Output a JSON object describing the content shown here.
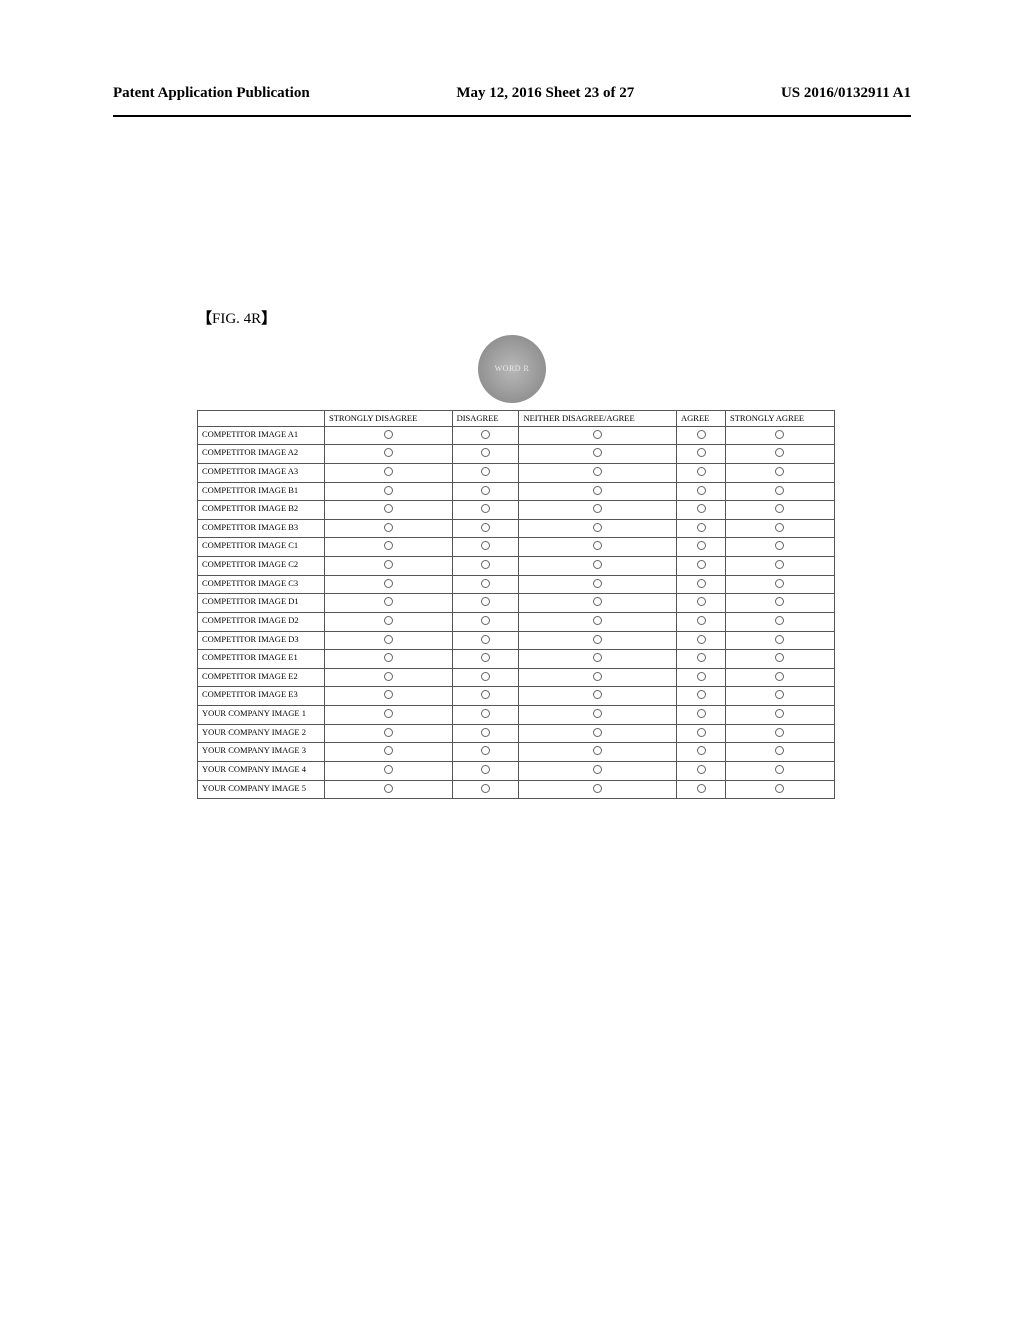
{
  "header": {
    "left": "Patent Application Publication",
    "center": "May 12, 2016  Sheet 23 of 27",
    "right": "US 2016/0132911 A1"
  },
  "figure_label": "FIG. 4R",
  "circle_word": "WORD\nR",
  "table": {
    "columns": [
      "STRONGLY DISAGREE",
      "DISAGREE",
      "NEITHER DISAGREE/AGREE",
      "AGREE",
      "STRONGLY AGREE"
    ],
    "rows": [
      "COMPETITOR IMAGE A1",
      "COMPETITOR IMAGE A2",
      "COMPETITOR IMAGE A3",
      "COMPETITOR IMAGE B1",
      "COMPETITOR IMAGE B2",
      "COMPETITOR IMAGE B3",
      "COMPETITOR IMAGE C1",
      "COMPETITOR IMAGE C2",
      "COMPETITOR IMAGE C3",
      "COMPETITOR IMAGE D1",
      "COMPETITOR IMAGE D2",
      "COMPETITOR IMAGE D3",
      "COMPETITOR IMAGE E1",
      "COMPETITOR IMAGE E2",
      "COMPETITOR IMAGE E3",
      "YOUR  COMPANY IMAGE 1",
      "YOUR  COMPANY IMAGE 2",
      "YOUR  COMPANY IMAGE 3",
      "YOUR  COMPANY IMAGE 4",
      "YOUR  COMPANY IMAGE 5"
    ]
  }
}
